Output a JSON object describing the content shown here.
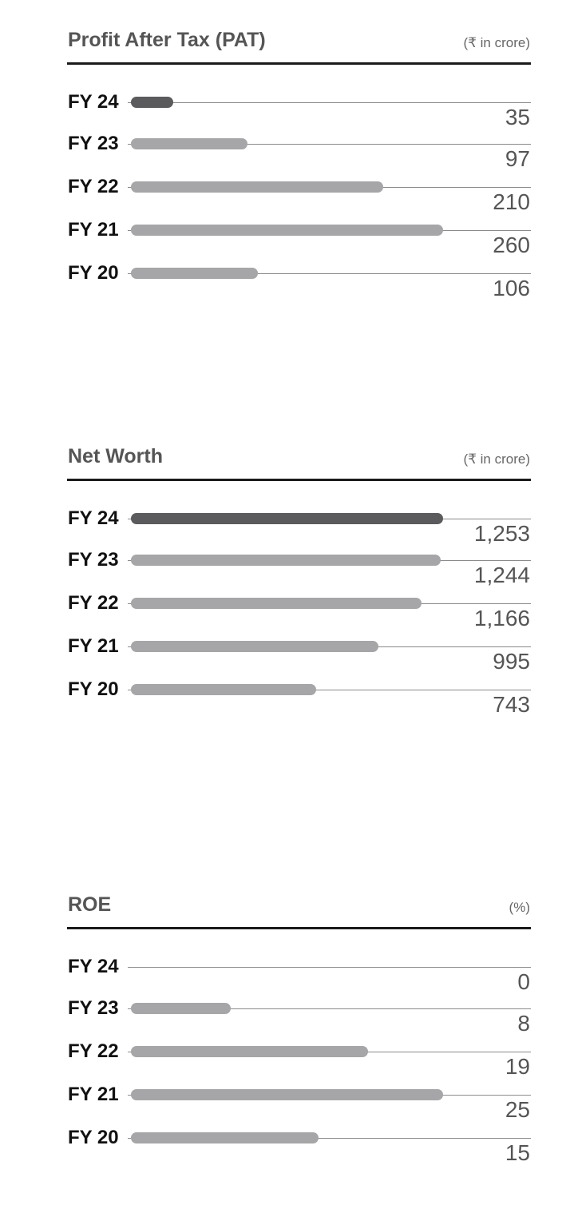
{
  "colors": {
    "current_bar": "#5b5b5d",
    "past_bar": "#a6a6a8"
  },
  "chart_data": [
    {
      "type": "bar",
      "orientation": "horizontal",
      "title": "Profit After Tax (PAT)",
      "unit": "(₹ in crore)",
      "categories": [
        "FY 24",
        "FY 23",
        "FY 22",
        "FY 21",
        "FY 20"
      ],
      "values": [
        35,
        97,
        210,
        260,
        106
      ],
      "labels": [
        "35",
        "97",
        "210",
        "260",
        "106"
      ],
      "xlim": [
        0,
        260
      ],
      "grid": false,
      "highlight": "FY 24"
    },
    {
      "type": "bar",
      "orientation": "horizontal",
      "title": "Net Worth",
      "unit": "(₹ in crore)",
      "categories": [
        "FY 24",
        "FY 23",
        "FY 22",
        "FY 21",
        "FY 20"
      ],
      "values": [
        1253,
        1244,
        1166,
        995,
        743
      ],
      "labels": [
        "1,253",
        "1,244",
        "1,166",
        "995",
        "743"
      ],
      "xlim": [
        0,
        1253
      ],
      "grid": false,
      "highlight": "FY 24"
    },
    {
      "type": "bar",
      "orientation": "horizontal",
      "title": "ROE",
      "unit": "(%)",
      "categories": [
        "FY 24",
        "FY 23",
        "FY 22",
        "FY 21",
        "FY 20"
      ],
      "values": [
        0,
        8,
        19,
        25,
        15
      ],
      "labels": [
        "0",
        "8",
        "19",
        "25",
        "15"
      ],
      "xlim": [
        0,
        25
      ],
      "grid": false,
      "highlight": "FY 24"
    }
  ]
}
